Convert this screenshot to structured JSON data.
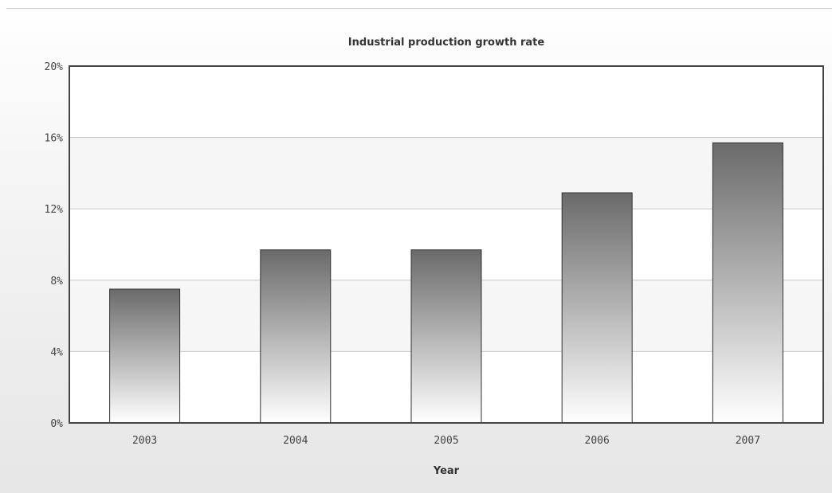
{
  "chart_data": {
    "type": "bar",
    "title": "Industrial production growth rate",
    "xlabel": "Year",
    "ylabel": "",
    "categories": [
      "2003",
      "2004",
      "2005",
      "2006",
      "2007"
    ],
    "values": [
      7.5,
      9.7,
      9.7,
      12.9,
      15.7
    ],
    "ylim": [
      0,
      20
    ],
    "yticks": [
      0,
      4,
      8,
      12,
      16,
      20
    ],
    "ytick_labels": [
      "0%",
      "4%",
      "8%",
      "12%",
      "16%",
      "20%"
    ],
    "grid": true,
    "legend": "none",
    "colors": {
      "bar_top": "#6a6a6a",
      "bar_bottom": "#ffffff",
      "bar_stroke": "#333333",
      "plot_frame": "#444444",
      "grid": "#c8c8c8",
      "band_light": "#ffffff",
      "band_alt": "#f6f6f6"
    }
  }
}
